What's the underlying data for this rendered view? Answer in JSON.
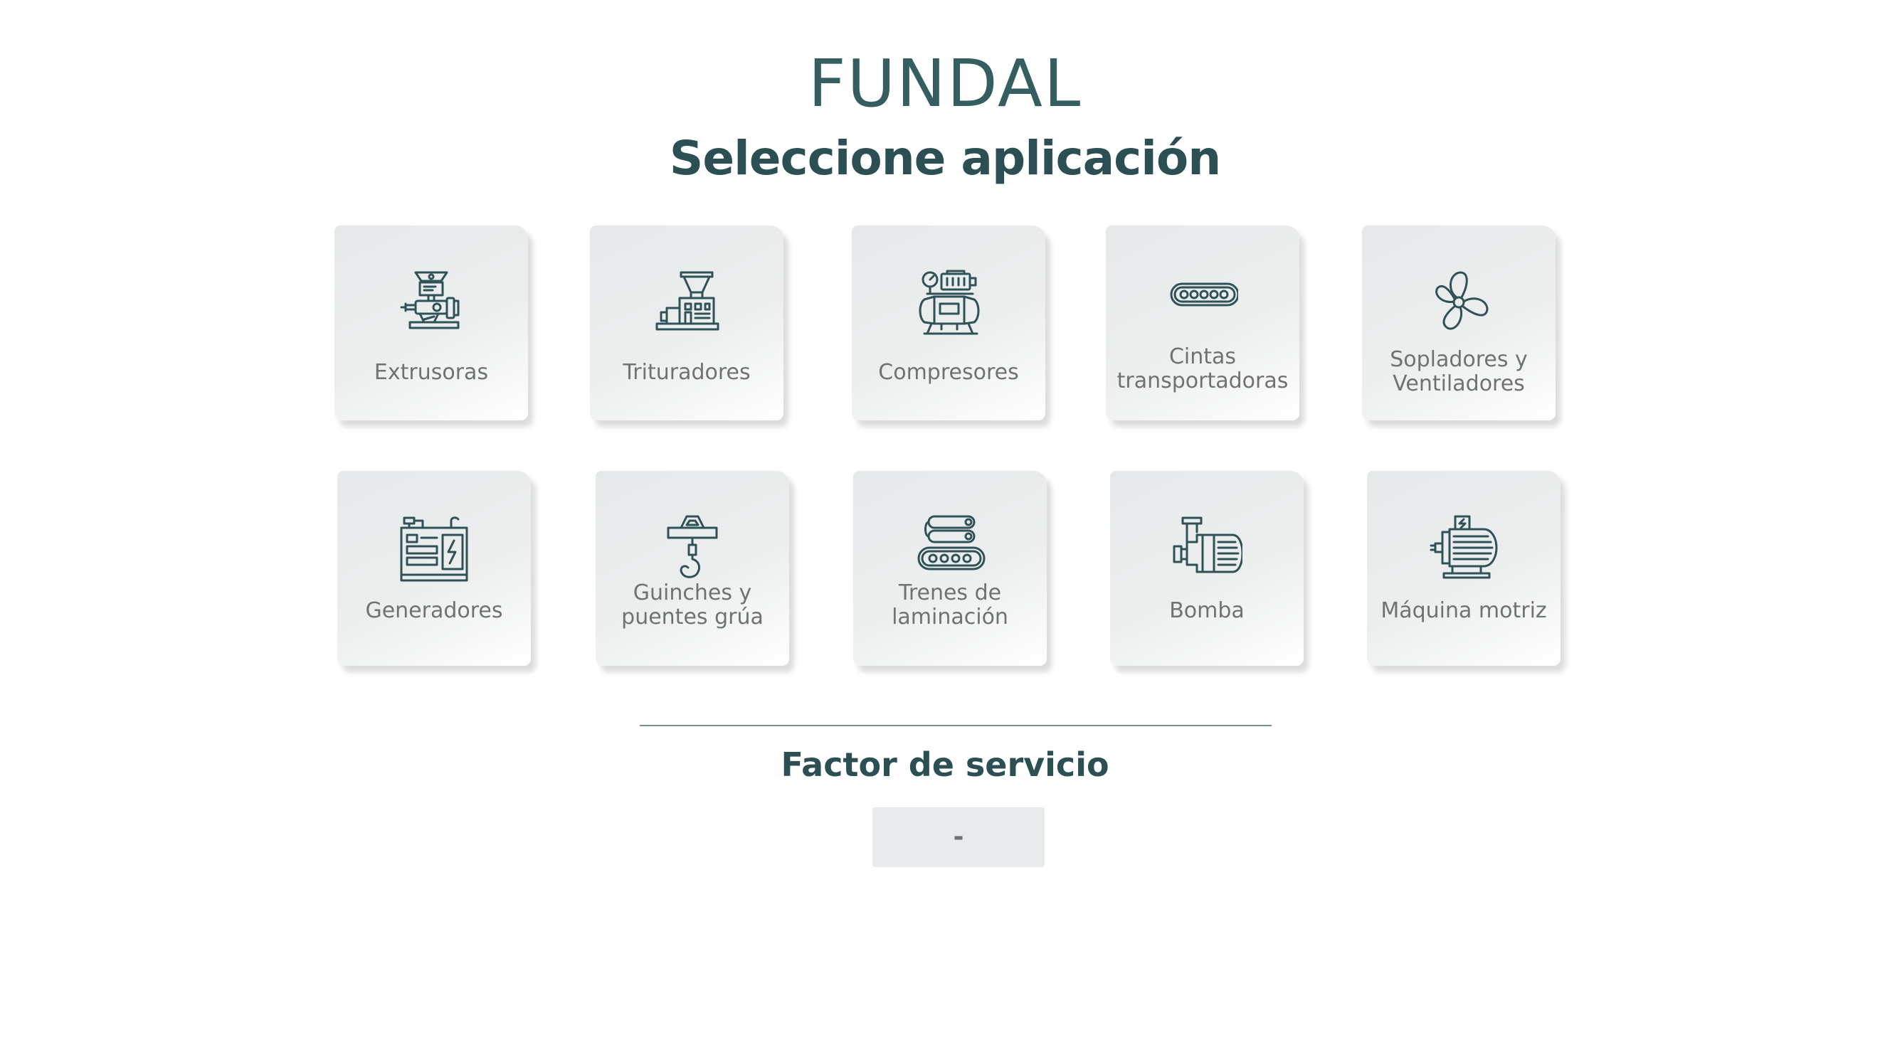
{
  "header": {
    "brand": "FUNDAL",
    "title": "Seleccione aplicación"
  },
  "applications": [
    {
      "label": "Extrusoras",
      "icon": "extruder-icon"
    },
    {
      "label": "Trituradores",
      "icon": "crusher-icon"
    },
    {
      "label": "Compresores",
      "icon": "compressor-icon"
    },
    {
      "label_line1": "Cintas",
      "label_line2": "transportadoras",
      "icon": "conveyor-icon"
    },
    {
      "label_line1": "Sopladores y",
      "label_line2": "Ventiladores",
      "icon": "fan-icon"
    },
    {
      "label": "Generadores",
      "icon": "generator-icon"
    },
    {
      "label_line1": "Guinches y",
      "label_line2": "puentes grúa",
      "icon": "crane-hook-icon"
    },
    {
      "label_line1": "Trenes de",
      "label_line2": "laminación",
      "icon": "rolling-mill-icon"
    },
    {
      "label": "Bomba",
      "icon": "pump-icon"
    },
    {
      "label": "Máquina motriz",
      "icon": "motor-icon"
    }
  ],
  "service_factor": {
    "title": "Factor de servicio",
    "value": "-"
  },
  "colors": {
    "brand": "#345e60",
    "title": "#2c4f53",
    "label": "#6f7173",
    "icon_stroke": "#2f5257",
    "card_bg": "#eceeee"
  }
}
